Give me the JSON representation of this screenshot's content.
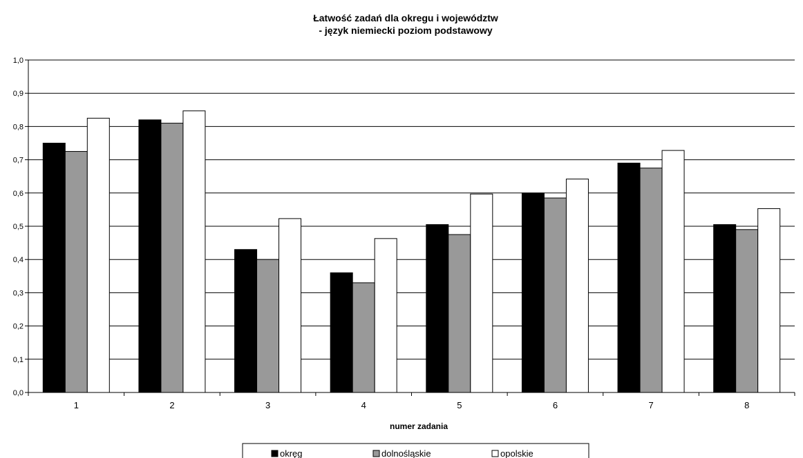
{
  "chart_data": {
    "type": "bar",
    "title_line1": "Łatwość zadań dla okregu i województw",
    "title_line2": "- język niemiecki poziom podstawowy",
    "xlabel": "numer zadania",
    "ylabel": "",
    "categories": [
      "1",
      "2",
      "3",
      "4",
      "5",
      "6",
      "7",
      "8"
    ],
    "ylim": [
      0,
      1.0
    ],
    "yticks": [
      "0,0",
      "0,1",
      "0,2",
      "0,3",
      "0,4",
      "0,5",
      "0,6",
      "0,7",
      "0,8",
      "0,9",
      "1,0"
    ],
    "grid": true,
    "legend_position": "bottom",
    "series": [
      {
        "name": "okręg",
        "color": "#000000",
        "values": [
          0.75,
          0.82,
          0.43,
          0.36,
          0.505,
          0.6,
          0.69,
          0.505
        ]
      },
      {
        "name": "dolnośląskie",
        "color": "#999999",
        "values": [
          0.725,
          0.81,
          0.4,
          0.33,
          0.475,
          0.585,
          0.675,
          0.49
        ]
      },
      {
        "name": "opolskie",
        "color": "#ffffff",
        "values": [
          0.825,
          0.847,
          0.523,
          0.463,
          0.597,
          0.642,
          0.728,
          0.553
        ]
      }
    ]
  }
}
